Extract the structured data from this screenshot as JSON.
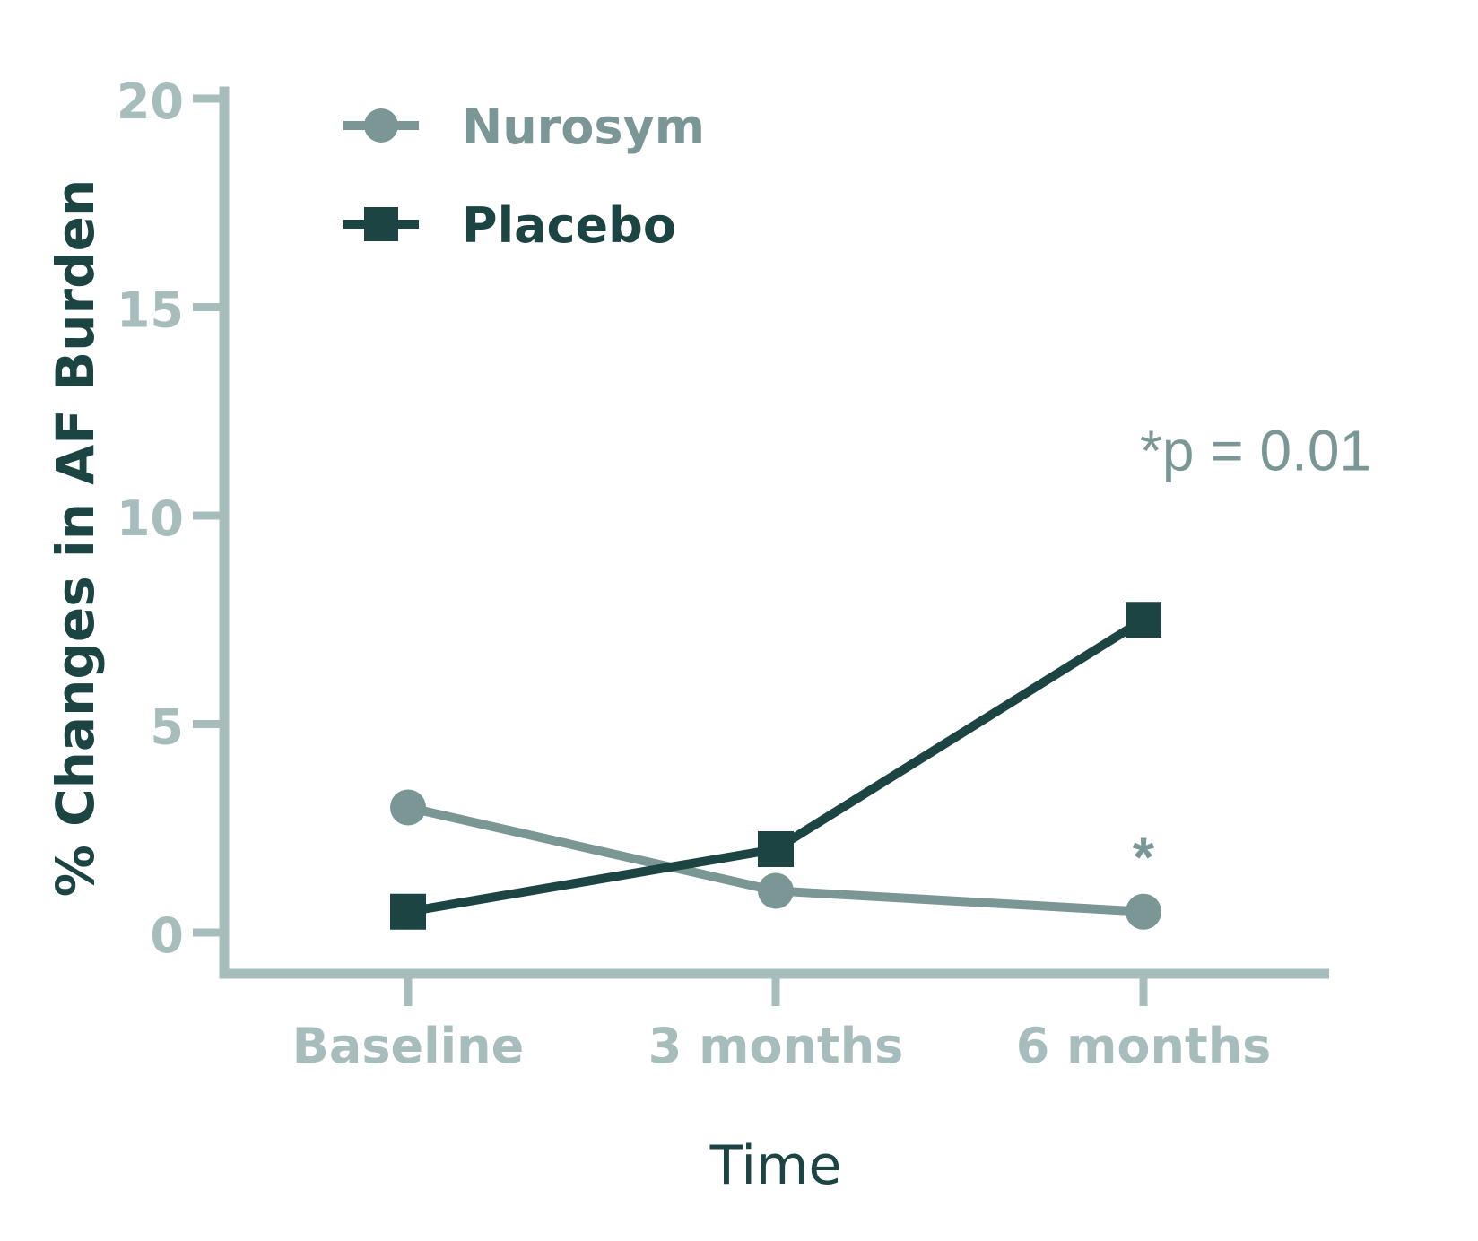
{
  "chart_data": {
    "type": "line",
    "xlabel": "Time",
    "ylabel": "% Changes in AF Burden",
    "categories": [
      "Baseline",
      "3 months",
      "6 months"
    ],
    "ylim": [
      0,
      20
    ],
    "yticks": [
      0,
      5,
      10,
      15,
      20
    ],
    "legend_position": "top-left",
    "grid": false,
    "series": [
      {
        "name": "Nurosym",
        "marker": "circle",
        "color": "#7a9695",
        "values": [
          3.0,
          1.0,
          0.5
        ]
      },
      {
        "name": "Placebo",
        "marker": "square",
        "color": "#1c4443",
        "values": [
          0.5,
          2.0,
          7.5
        ]
      }
    ],
    "annotations": [
      {
        "text": "*p = 0.01",
        "category": "6 months",
        "y": 11.6
      },
      {
        "text": "*",
        "category": "6 months",
        "y": 2.2
      }
    ],
    "colors": {
      "axis": "#a7bdbc",
      "tick_text": "#a7bdbc",
      "title_text": "#1c4443",
      "annotation_text": "#7a9695"
    }
  }
}
